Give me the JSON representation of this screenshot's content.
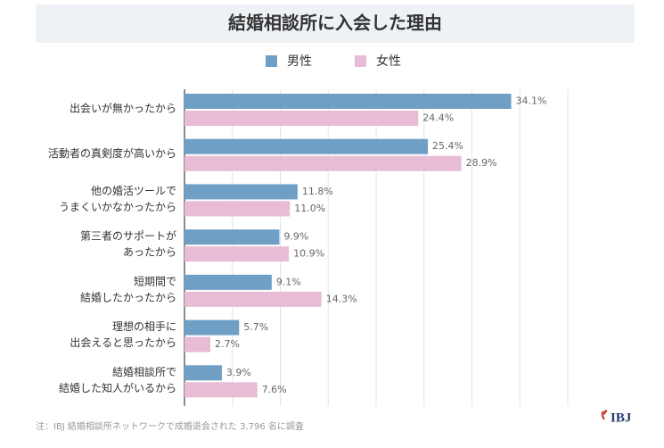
{
  "chart_data": {
    "type": "grouped-hbar",
    "title": "結婚相談所に入会した理由",
    "categories": [
      [
        "出会いが無かったから"
      ],
      [
        "活動者の真剣度が高いから"
      ],
      [
        "他の婚活ツールで",
        "うまくいかなかったから"
      ],
      [
        "第三者のサポートが",
        "あったから"
      ],
      [
        "短期間で",
        "結婚したかったから"
      ],
      [
        "理想の相手に",
        "出会えると思ったから"
      ],
      [
        "結婚相談所で",
        "結婚した知人がいるから"
      ]
    ],
    "series": [
      {
        "name": "男性",
        "color": "#6f9fc5",
        "values": [
          34.1,
          25.4,
          11.8,
          9.9,
          9.1,
          5.7,
          3.9
        ],
        "value_labels": [
          "34.1%",
          "25.4%",
          "11.8%",
          "9.9%",
          "9.1%",
          "5.7%",
          "3.9%"
        ]
      },
      {
        "name": "女性",
        "color": "#e8bcd5",
        "values": [
          24.4,
          28.9,
          11.0,
          10.9,
          14.3,
          2.7,
          7.6
        ],
        "value_labels": [
          "24.4%",
          "28.9%",
          "11.0%",
          "10.9%",
          "14.3%",
          "2.7%",
          "7.6%"
        ]
      }
    ],
    "xlim": [
      0,
      40
    ],
    "xticks": [
      0,
      5,
      10,
      15,
      20,
      25,
      30,
      35,
      40
    ],
    "grid": true,
    "note": "注：IBJ 結婚相談所ネットワークで成婚退会された 3,796 名に調査",
    "logo": "IBJ"
  }
}
